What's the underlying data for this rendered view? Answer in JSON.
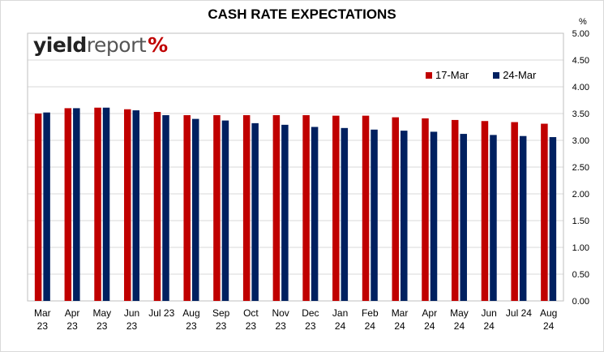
{
  "chart_data": {
    "type": "bar",
    "title": "CASH RATE EXPECTATIONS",
    "y_unit": "%",
    "ylim": [
      0,
      5
    ],
    "y_ticks": [
      "0.00",
      "0.50",
      "1.00",
      "1.50",
      "2.00",
      "2.50",
      "3.00",
      "3.50",
      "4.00",
      "4.50",
      "5.00"
    ],
    "y_axis_position": "right",
    "grid": true,
    "legend_position": "top-right",
    "categories": [
      [
        "Mar",
        "23"
      ],
      [
        "Apr",
        "23"
      ],
      [
        "May",
        "23"
      ],
      [
        "Jun",
        "23"
      ],
      [
        "Jul 23",
        ""
      ],
      [
        "Aug",
        "23"
      ],
      [
        "Sep",
        "23"
      ],
      [
        "Oct",
        "23"
      ],
      [
        "Nov",
        "23"
      ],
      [
        "Dec",
        "23"
      ],
      [
        "Jan",
        "24"
      ],
      [
        "Feb",
        "24"
      ],
      [
        "Mar",
        "24"
      ],
      [
        "Apr",
        "24"
      ],
      [
        "May",
        "24"
      ],
      [
        "Jun",
        "24"
      ],
      [
        "Jul 24",
        ""
      ],
      [
        "Aug",
        "24"
      ]
    ],
    "series": [
      {
        "name": "17-Mar",
        "color": "#c00000",
        "values": [
          3.5,
          3.6,
          3.61,
          3.58,
          3.53,
          3.47,
          3.47,
          3.47,
          3.47,
          3.47,
          3.46,
          3.46,
          3.43,
          3.41,
          3.38,
          3.36,
          3.34,
          3.31
        ]
      },
      {
        "name": "24-Mar",
        "color": "#002060",
        "values": [
          3.52,
          3.6,
          3.61,
          3.56,
          3.47,
          3.4,
          3.37,
          3.32,
          3.29,
          3.25,
          3.23,
          3.2,
          3.18,
          3.16,
          3.12,
          3.1,
          3.08,
          3.06
        ]
      }
    ]
  },
  "logo": {
    "part1": "yield",
    "part2": "report",
    "part3": "%"
  },
  "legend": [
    {
      "label": "17-Mar",
      "color": "#c00000"
    },
    {
      "label": "24-Mar",
      "color": "#002060"
    }
  ]
}
